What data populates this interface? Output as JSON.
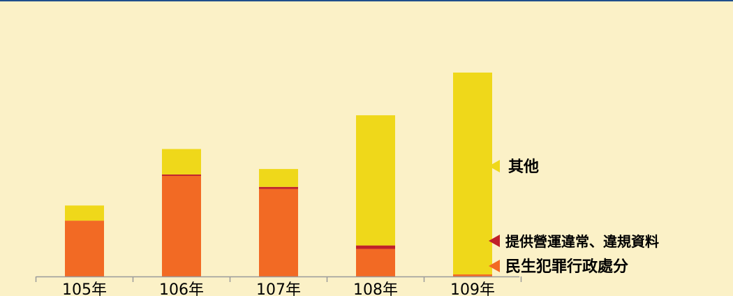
{
  "chart_data": {
    "type": "bar",
    "stacked": true,
    "title": "",
    "xlabel": "",
    "ylabel": "",
    "categories": [
      "105年",
      "106年",
      "107年",
      "108年",
      "109年"
    ],
    "ylim": [
      0,
      300
    ],
    "grid": false,
    "legend_position": "right",
    "series": [
      {
        "name": "民生犯罪行政處分",
        "color": "#f26a24",
        "values": [
          81,
          146,
          127,
          40,
          3
        ]
      },
      {
        "name": "提供營運違常、違規資料",
        "color": "#c0202a",
        "values": [
          0,
          2,
          3,
          5,
          0
        ]
      },
      {
        "name": "其他",
        "color": "#efd81a",
        "values": [
          22,
          37,
          26,
          189,
          293
        ]
      }
    ]
  }
}
